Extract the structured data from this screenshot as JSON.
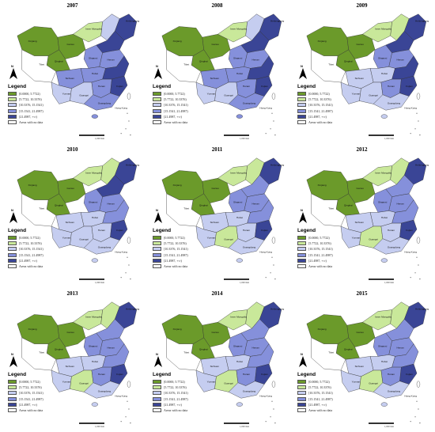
{
  "panels": [
    {
      "year": "2007",
      "scheme": [
        0,
        0,
        0,
        1,
        1,
        2,
        3,
        3,
        2,
        4,
        4,
        3,
        3,
        2,
        4,
        3,
        4,
        3
      ]
    },
    {
      "year": "2008",
      "scheme": [
        0,
        0,
        0,
        1,
        1,
        2,
        3,
        3,
        2,
        4,
        4,
        3,
        3,
        2,
        4,
        3,
        4,
        3
      ]
    },
    {
      "year": "2009",
      "scheme": [
        0,
        0,
        0,
        1,
        1,
        1,
        2,
        3,
        2,
        4,
        4,
        3,
        2,
        2,
        4,
        3,
        4,
        2
      ]
    },
    {
      "year": "2010",
      "scheme": [
        0,
        0,
        0,
        1,
        1,
        1,
        2,
        3,
        2,
        4,
        4,
        3,
        2,
        2,
        3,
        2,
        4,
        2
      ]
    },
    {
      "year": "2011",
      "scheme": [
        0,
        0,
        0,
        1,
        1,
        1,
        2,
        3,
        2,
        4,
        3,
        3,
        2,
        1,
        3,
        2,
        4,
        2
      ]
    },
    {
      "year": "2012",
      "scheme": [
        0,
        0,
        0,
        1,
        1,
        1,
        2,
        3,
        2,
        4,
        3,
        3,
        2,
        1,
        3,
        2,
        4,
        2
      ]
    },
    {
      "year": "2013",
      "scheme": [
        0,
        0,
        0,
        1,
        1,
        1,
        2,
        3,
        2,
        4,
        3,
        3,
        2,
        1,
        3,
        3,
        4,
        2
      ]
    },
    {
      "year": "2014",
      "scheme": [
        0,
        0,
        0,
        1,
        1,
        1,
        2,
        3,
        2,
        4,
        3,
        3,
        2,
        1,
        3,
        3,
        4,
        2
      ]
    },
    {
      "year": "2015",
      "scheme": [
        0,
        0,
        0,
        1,
        1,
        1,
        2,
        3,
        2,
        4,
        3,
        3,
        2,
        1,
        3,
        3,
        4,
        2
      ]
    }
  ],
  "legend": {
    "title": "Legend",
    "items": [
      {
        "label": "[0.0000,   5.7722)",
        "color": "#6b9a2a"
      },
      {
        "label": "[5.7722,   10.3376)",
        "color": "#c9e89a"
      },
      {
        "label": "[10.3376,   15.1541)",
        "color": "#c5cdf0"
      },
      {
        "label": "[15.1541,   21.4987)",
        "color": "#8590db"
      },
      {
        "label": "[21.4987,   +∞)",
        "color": "#3a4596"
      },
      {
        "label": "Areas with no data",
        "color": "#ffffff"
      }
    ]
  },
  "province_labels": [
    "Xinjiang",
    "Tibet",
    "Qinghai",
    "Gansu",
    "Inner Mongolia",
    "Heilongjiang",
    "Sichuan",
    "Yunnan",
    "Hubei",
    "Hunan",
    "Henan",
    "Shaanxi",
    "Guangxi",
    "Guangdong",
    "Fujian",
    "Hong Kong"
  ],
  "scale_label": "1,000 Km",
  "north_label": "N"
}
